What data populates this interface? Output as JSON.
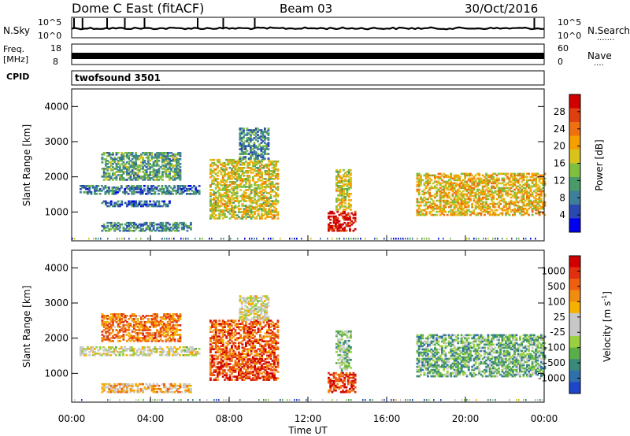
{
  "header": {
    "station": "Dome C East (fitACF)",
    "beam": "Beam 03",
    "date": "30/Oct/2016"
  },
  "noise_panel": {
    "left_label": "N.Sky",
    "right_label": "N.Search",
    "right_legend_dots": ".......",
    "left_ticks": [
      "10^5",
      "10^0"
    ],
    "right_ticks": [
      "10^5",
      "10^0"
    ]
  },
  "freq_panel": {
    "left_label_line1": "Freq.",
    "left_label_line2": "[MHz]",
    "right_label": "Nave",
    "right_legend_dots": "....",
    "left_ticks": [
      "18",
      "8"
    ],
    "right_ticks": [
      "60",
      "0"
    ]
  },
  "cpid": {
    "label": "CPID",
    "program": "twofsound 3501"
  },
  "x_axis": {
    "title": "Time UT",
    "ticks": [
      "00:00",
      "04:00",
      "08:00",
      "12:00",
      "16:00",
      "20:00",
      "00:00"
    ]
  },
  "chart_data": [
    {
      "type": "heatmap",
      "name": "power-panel",
      "ylabel": "Slant Range [km]",
      "ylim": [
        180,
        4500
      ],
      "yticks": [
        "1000",
        "2000",
        "3000",
        "4000"
      ],
      "xlim_hours": [
        0,
        24
      ],
      "colorbar": {
        "label": "Power [dB]",
        "ticks": [
          "4",
          "8",
          "12",
          "16",
          "20",
          "24",
          "28"
        ],
        "colors": [
          "#0000ee",
          "#2a48b0",
          "#3d7f9a",
          "#4a9a6a",
          "#7fbf3f",
          "#d8c21c",
          "#f5a000",
          "#ee7010",
          "#e04010",
          "#d00000"
        ]
      },
      "echo_regions": [
        {
          "t0": 0.4,
          "t1": 6.5,
          "r0": 1500,
          "r1": 1750,
          "level": 0.25
        },
        {
          "t0": 1.5,
          "t1": 5.0,
          "r0": 1150,
          "r1": 1300,
          "level": 0.2
        },
        {
          "t0": 1.5,
          "t1": 6.0,
          "r0": 450,
          "r1": 700,
          "level": 0.3
        },
        {
          "t0": 1.5,
          "t1": 5.5,
          "r0": 1900,
          "r1": 2700,
          "level": 0.35
        },
        {
          "t0": 7.0,
          "t1": 10.5,
          "r0": 800,
          "r1": 2500,
          "level": 0.55
        },
        {
          "t0": 8.5,
          "t1": 10.0,
          "r0": 2500,
          "r1": 3400,
          "level": 0.3
        },
        {
          "t0": 13.0,
          "t1": 14.4,
          "r0": 450,
          "r1": 1000,
          "level": 0.95
        },
        {
          "t0": 13.4,
          "t1": 14.2,
          "r0": 1050,
          "r1": 2200,
          "level": 0.55
        },
        {
          "t0": 17.5,
          "t1": 24.0,
          "r0": 900,
          "r1": 2100,
          "level": 0.6
        }
      ]
    },
    {
      "type": "heatmap",
      "name": "velocity-panel",
      "ylabel": "Slant Range [km]",
      "ylim": [
        180,
        4500
      ],
      "yticks": [
        "1000",
        "2000",
        "3000",
        "4000"
      ],
      "xlim_hours": [
        0,
        24
      ],
      "colorbar": {
        "label": "Velocity [m s",
        "label_sup": "-1",
        "label_end": "]",
        "ticks": [
          "1000",
          "500",
          "100",
          "25",
          "-25",
          "-100",
          "-500",
          "-1000"
        ],
        "colors": [
          "#1e46c8",
          "#2f6faa",
          "#3a8a7a",
          "#5aae4a",
          "#9ad040",
          "#c8c8c8",
          "#c8c8c8",
          "#f5b000",
          "#f08c10",
          "#ee6010",
          "#e03010",
          "#d00000"
        ]
      },
      "echo_regions": [
        {
          "t0": 0.4,
          "t1": 6.5,
          "r0": 1500,
          "r1": 1750,
          "level": 0.5
        },
        {
          "t0": 1.5,
          "t1": 6.0,
          "r0": 450,
          "r1": 700,
          "level": 0.65
        },
        {
          "t0": 1.5,
          "t1": 5.5,
          "r0": 1900,
          "r1": 2700,
          "level": 0.75
        },
        {
          "t0": 7.0,
          "t1": 10.5,
          "r0": 800,
          "r1": 1400,
          "level": 0.85
        },
        {
          "t0": 7.0,
          "t1": 10.5,
          "r0": 1400,
          "r1": 2500,
          "level": 0.8
        },
        {
          "t0": 8.5,
          "t1": 10.0,
          "r0": 2500,
          "r1": 3200,
          "level": 0.5
        },
        {
          "t0": 13.0,
          "t1": 14.4,
          "r0": 450,
          "r1": 1000,
          "level": 0.85
        },
        {
          "t0": 13.4,
          "t1": 14.2,
          "r0": 1050,
          "r1": 2200,
          "level": 0.35
        },
        {
          "t0": 17.5,
          "t1": 24.0,
          "r0": 900,
          "r1": 2100,
          "level": 0.3
        }
      ]
    }
  ]
}
